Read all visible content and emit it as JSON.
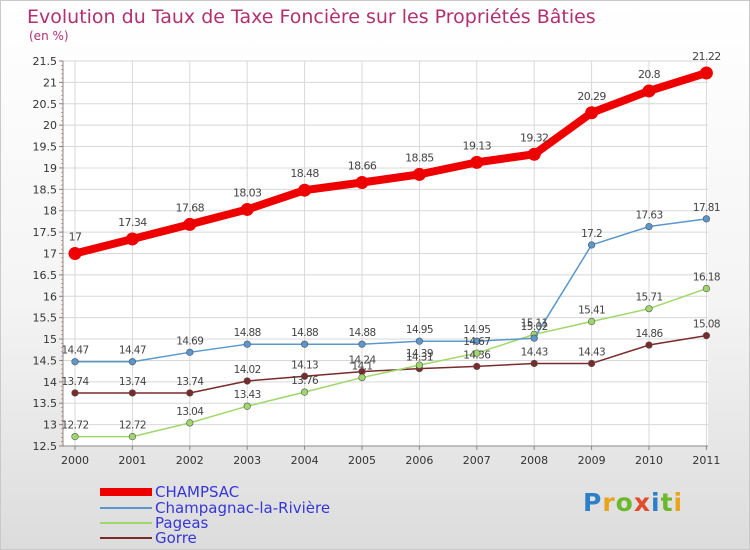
{
  "header": {
    "title": "Evolution du Taux de Taxe Foncière sur les Propriétés Bâties",
    "subtitle": "(en %)"
  },
  "logo": {
    "text": "Proxiti",
    "letter_colors": [
      "#2d80c8",
      "#e8a51c",
      "#6bb82b",
      "#e24b2a",
      "#2d80c8",
      "#6bb82b",
      "#e8a51c"
    ]
  },
  "chart_data": {
    "type": "line",
    "x": [
      "2000",
      "2001",
      "2002",
      "2003",
      "2004",
      "2005",
      "2006",
      "2007",
      "2008",
      "2009",
      "2010",
      "2011"
    ],
    "ylim": [
      12.5,
      21.5
    ],
    "yticks": [
      "12.5",
      "13",
      "13.5",
      "14",
      "14.5",
      "15",
      "15.5",
      "16",
      "16.5",
      "17",
      "17.5",
      "18",
      "18.5",
      "19",
      "19.5",
      "20",
      "20.5",
      "21",
      "21.5"
    ],
    "grid": true,
    "legend_position": "bottom-left",
    "series": [
      {
        "name": "CHAMPSAC",
        "color": "#ee0000",
        "values": [
          17,
          17.34,
          17.68,
          18.03,
          18.48,
          18.66,
          18.85,
          19.13,
          19.32,
          20.29,
          20.8,
          21.22
        ],
        "labels": [
          "17",
          "17.34",
          "17.68",
          "18.03",
          "18.48",
          "18.66",
          "18.85",
          "19.13",
          "19.32",
          "20.29",
          "20.8",
          "21.22"
        ]
      },
      {
        "name": "Champagnac-la-Rivière",
        "color": "#5a97cc",
        "values": [
          14.47,
          14.47,
          14.69,
          14.88,
          14.88,
          14.88,
          14.95,
          14.95,
          15.02,
          17.2,
          17.63,
          17.81
        ],
        "labels": [
          "14.47",
          "14.47",
          "14.69",
          "14.88",
          "14.88",
          "14.88",
          "14.95",
          "14.95",
          "15.02",
          "17.2",
          "17.63",
          "17.81"
        ]
      },
      {
        "name": "Pageas",
        "color": "#9fd86a",
        "values": [
          12.72,
          12.72,
          13.04,
          13.43,
          13.76,
          14.1,
          14.39,
          14.67,
          15.11,
          15.41,
          15.71,
          16.18
        ],
        "labels": [
          "12.72",
          "12.72",
          "13.04",
          "13.43",
          "13.76",
          "14.1",
          "14.39",
          "14.67",
          "15.11",
          "15.41",
          "15.71",
          "16.18"
        ]
      },
      {
        "name": "Gorre",
        "color": "#7a2a2a",
        "values": [
          13.74,
          13.74,
          13.74,
          14.02,
          14.13,
          14.24,
          14.31,
          14.36,
          14.43,
          14.43,
          14.86,
          15.08
        ],
        "labels": [
          "13.74",
          "13.74",
          "13.74",
          "14.02",
          "14.13",
          "14.24",
          "14.31",
          "14.36",
          "14.43",
          "14.43",
          "14.86",
          "15.08"
        ]
      }
    ]
  }
}
